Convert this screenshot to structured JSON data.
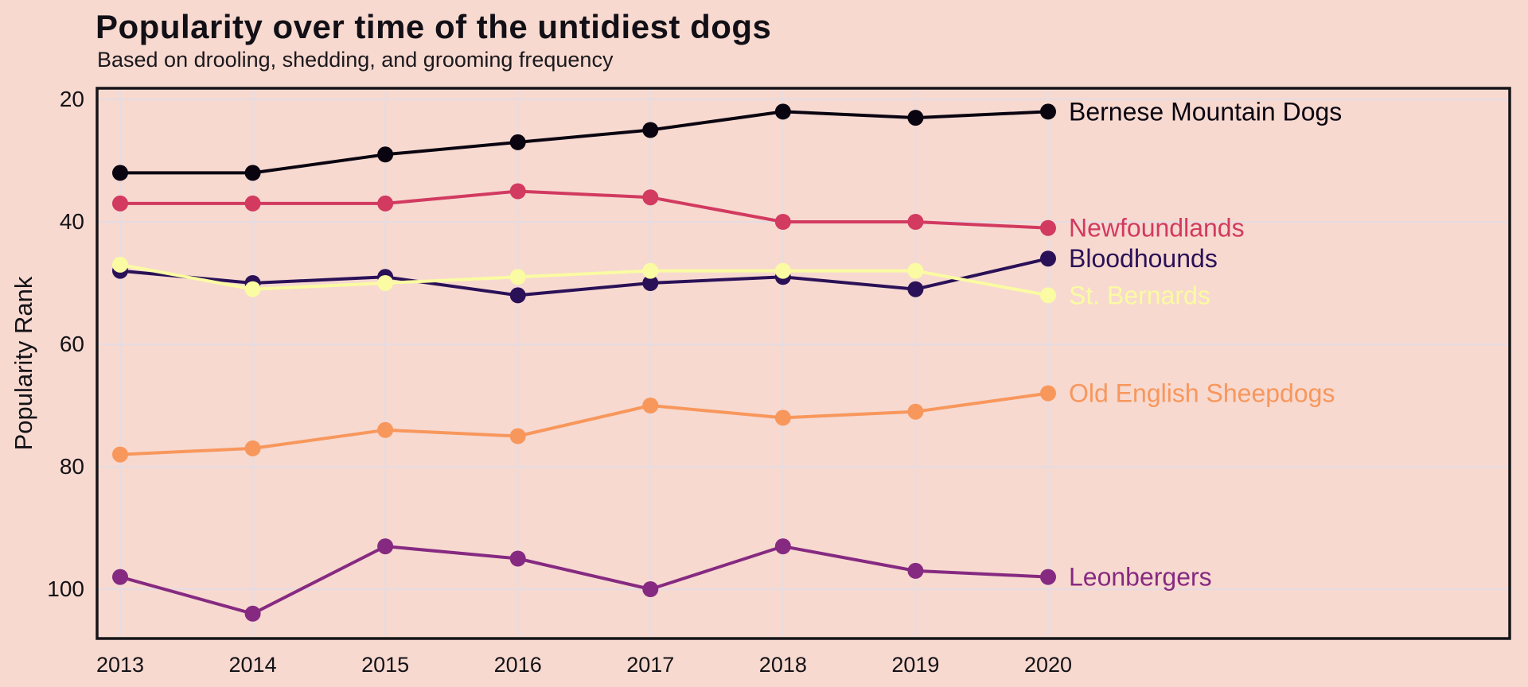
{
  "page": {
    "background_color": "#f7d9d0",
    "grid_color": "#e6dce2",
    "border_color": "#161418",
    "text_color": "#141216"
  },
  "chart": {
    "title": "Popularity over time of the untidiest dogs",
    "subtitle": "Based on drooling, shedding, and grooming frequency",
    "y_axis": {
      "label": "Popularity Rank",
      "ticks": [
        20,
        40,
        60,
        80,
        100
      ]
    },
    "x_axis": {
      "ticks": [
        "2013",
        "2014",
        "2015",
        "2016",
        "2017",
        "2018",
        "2019",
        "2020"
      ]
    }
  },
  "chart_data": {
    "type": "line",
    "title": "Popularity over time of the untidiest dogs",
    "subtitle": "Based on drooling, shedding, and grooming frequency",
    "xlabel": "",
    "ylabel": "Popularity Rank",
    "x": [
      2013,
      2014,
      2015,
      2016,
      2017,
      2018,
      2019,
      2020
    ],
    "inverted_y": true,
    "ylim": [
      108,
      18
    ],
    "grid": true,
    "legend_position": "end-of-line-labels",
    "series": [
      {
        "name": "Bernese Mountain Dogs",
        "color": "#0a0410",
        "values": [
          32,
          32,
          29,
          27,
          25,
          22,
          23,
          22
        ]
      },
      {
        "name": "Newfoundlands",
        "color": "#d23a60",
        "values": [
          37,
          37,
          37,
          35,
          36,
          40,
          40,
          41
        ]
      },
      {
        "name": "Bloodhounds",
        "color": "#2a1157",
        "values": [
          48,
          50,
          49,
          52,
          50,
          49,
          51,
          46
        ]
      },
      {
        "name": "St. Bernards",
        "color": "#fafba2",
        "values": [
          47,
          51,
          50,
          49,
          48,
          48,
          48,
          52
        ]
      },
      {
        "name": "Old English Sheepdogs",
        "color": "#f8975c",
        "values": [
          78,
          77,
          74,
          75,
          70,
          72,
          71,
          68
        ]
      },
      {
        "name": "Leonbergers",
        "color": "#862a81",
        "values": [
          98,
          104,
          93,
          95,
          100,
          93,
          97,
          98
        ]
      }
    ]
  }
}
